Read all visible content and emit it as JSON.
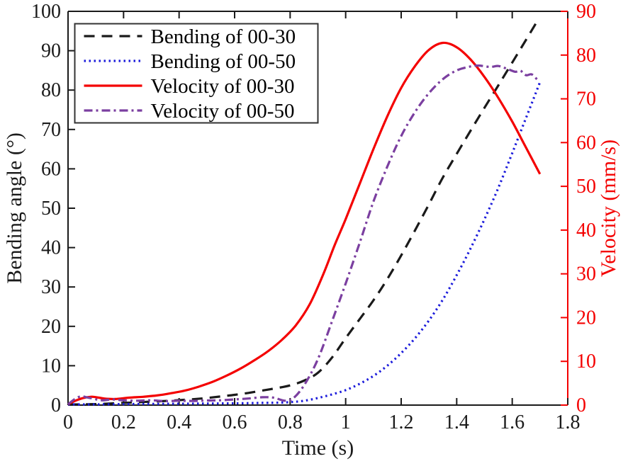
{
  "chart_data": {
    "type": "line",
    "title": "",
    "xlabel": "Time (s)",
    "ylabel_left": "Bending angle (°)",
    "ylabel_right": "Velocity (mm/s)",
    "xlim": [
      0,
      1.8
    ],
    "ylim_left": [
      0,
      100
    ],
    "ylim_right": [
      0,
      90
    ],
    "xtick_values": [
      0,
      0.2,
      0.4,
      0.6,
      0.8,
      1,
      1.2,
      1.4,
      1.6,
      1.8
    ],
    "xtick_labels": [
      "0",
      "0.2",
      "0.4",
      "0.6",
      "0.8",
      "1",
      "1.2",
      "1.4",
      "1.6",
      "1.8"
    ],
    "ytick_left_values": [
      0,
      10,
      20,
      30,
      40,
      50,
      60,
      70,
      80,
      90,
      100
    ],
    "ytick_left_labels": [
      "0",
      "10",
      "20",
      "30",
      "40",
      "50",
      "60",
      "70",
      "80",
      "90",
      "100"
    ],
    "ytick_right_values": [
      0,
      10,
      20,
      30,
      40,
      50,
      60,
      70,
      80,
      90
    ],
    "ytick_right_labels": [
      "0",
      "10",
      "20",
      "30",
      "40",
      "50",
      "60",
      "70",
      "80",
      "90"
    ],
    "grid": false,
    "legend_position": "top-left",
    "colors": {
      "axis_left": "#1a1a1a",
      "axis_right": "#f40000",
      "bending_00_30": "#1a1a1a",
      "bending_00_50": "#1c1cdb",
      "velocity_00_30": "#f40000",
      "velocity_00_50": "#7b3fa0",
      "legend_border": "#333333"
    },
    "series": [
      {
        "name": "Bending of 00-30",
        "axis": "left",
        "color": "#1a1a1a",
        "style": "dashed",
        "points": [
          [
            0,
            0
          ],
          [
            0.05,
            0.1
          ],
          [
            0.1,
            0.25
          ],
          [
            0.15,
            0.4
          ],
          [
            0.2,
            0.55
          ],
          [
            0.25,
            0.7
          ],
          [
            0.3,
            0.9
          ],
          [
            0.35,
            1.05
          ],
          [
            0.4,
            1.25
          ],
          [
            0.45,
            1.5
          ],
          [
            0.5,
            1.8
          ],
          [
            0.55,
            2.2
          ],
          [
            0.6,
            2.6
          ],
          [
            0.65,
            3.1
          ],
          [
            0.7,
            3.7
          ],
          [
            0.75,
            4.3
          ],
          [
            0.8,
            5.0
          ],
          [
            0.85,
            6.2
          ],
          [
            0.9,
            8.2
          ],
          [
            0.95,
            12.0
          ],
          [
            1.0,
            17.0
          ],
          [
            1.05,
            21.8
          ],
          [
            1.1,
            26.6
          ],
          [
            1.15,
            32.0
          ],
          [
            1.2,
            38.0
          ],
          [
            1.25,
            44.4
          ],
          [
            1.3,
            51.0
          ],
          [
            1.35,
            57.8
          ],
          [
            1.4,
            63.8
          ],
          [
            1.45,
            69.7
          ],
          [
            1.5,
            75.5
          ],
          [
            1.55,
            81.2
          ],
          [
            1.6,
            87.0
          ],
          [
            1.65,
            92.8
          ],
          [
            1.69,
            97.5
          ]
        ]
      },
      {
        "name": "Bending of 00-50",
        "axis": "left",
        "color": "#1c1cdb",
        "style": "dotted",
        "points": [
          [
            0,
            0
          ],
          [
            0.05,
            0.1
          ],
          [
            0.1,
            0.15
          ],
          [
            0.2,
            0.25
          ],
          [
            0.3,
            0.3
          ],
          [
            0.4,
            0.35
          ],
          [
            0.5,
            0.4
          ],
          [
            0.6,
            0.45
          ],
          [
            0.7,
            0.55
          ],
          [
            0.75,
            0.6
          ],
          [
            0.8,
            0.75
          ],
          [
            0.85,
            1.1
          ],
          [
            0.9,
            1.8
          ],
          [
            0.95,
            2.7
          ],
          [
            1.0,
            3.8
          ],
          [
            1.05,
            5.4
          ],
          [
            1.1,
            7.4
          ],
          [
            1.15,
            10.0
          ],
          [
            1.2,
            13.2
          ],
          [
            1.25,
            17.0
          ],
          [
            1.3,
            21.5
          ],
          [
            1.35,
            26.8
          ],
          [
            1.4,
            33.0
          ],
          [
            1.45,
            39.8
          ],
          [
            1.5,
            47.2
          ],
          [
            1.55,
            55.2
          ],
          [
            1.6,
            64.0
          ],
          [
            1.65,
            73.0
          ],
          [
            1.7,
            82.0
          ]
        ]
      },
      {
        "name": "Velocity of 00-30",
        "axis": "right",
        "color": "#f40000",
        "style": "solid",
        "points": [
          [
            0,
            0.2
          ],
          [
            0.03,
            1.1
          ],
          [
            0.06,
            1.7
          ],
          [
            0.09,
            1.9
          ],
          [
            0.13,
            1.5
          ],
          [
            0.17,
            1.4
          ],
          [
            0.22,
            1.7
          ],
          [
            0.27,
            1.9
          ],
          [
            0.32,
            2.2
          ],
          [
            0.37,
            2.7
          ],
          [
            0.42,
            3.3
          ],
          [
            0.47,
            4.2
          ],
          [
            0.52,
            5.3
          ],
          [
            0.57,
            6.7
          ],
          [
            0.62,
            8.3
          ],
          [
            0.67,
            10.2
          ],
          [
            0.72,
            12.3
          ],
          [
            0.77,
            14.9
          ],
          [
            0.82,
            18.2
          ],
          [
            0.87,
            23.0
          ],
          [
            0.92,
            30.0
          ],
          [
            0.96,
            36.5
          ],
          [
            1.0,
            42.5
          ],
          [
            1.05,
            50.5
          ],
          [
            1.1,
            58.5
          ],
          [
            1.15,
            66.0
          ],
          [
            1.2,
            72.5
          ],
          [
            1.25,
            77.5
          ],
          [
            1.3,
            81.2
          ],
          [
            1.35,
            82.8
          ],
          [
            1.4,
            81.8
          ],
          [
            1.45,
            79.0
          ],
          [
            1.5,
            75.0
          ],
          [
            1.55,
            70.2
          ],
          [
            1.6,
            64.8
          ],
          [
            1.65,
            58.8
          ],
          [
            1.7,
            52.8
          ]
        ]
      },
      {
        "name": "Velocity of 00-50",
        "axis": "right",
        "color": "#7b3fa0",
        "style": "dashdot",
        "points": [
          [
            0,
            0.2
          ],
          [
            0.04,
            1.9
          ],
          [
            0.08,
            1.6
          ],
          [
            0.12,
            1.1
          ],
          [
            0.16,
            1.3
          ],
          [
            0.2,
            1.1
          ],
          [
            0.25,
            1.0
          ],
          [
            0.3,
            1.1
          ],
          [
            0.35,
            0.9
          ],
          [
            0.4,
            1.0
          ],
          [
            0.45,
            0.95
          ],
          [
            0.5,
            1.05
          ],
          [
            0.55,
            1.1
          ],
          [
            0.6,
            1.3
          ],
          [
            0.65,
            1.5
          ],
          [
            0.7,
            1.8
          ],
          [
            0.74,
            1.7
          ],
          [
            0.78,
            1.0
          ],
          [
            0.81,
            1.5
          ],
          [
            0.85,
            4.5
          ],
          [
            0.9,
            10.5
          ],
          [
            0.95,
            19.0
          ],
          [
            1.0,
            27.8
          ],
          [
            1.05,
            37.0
          ],
          [
            1.1,
            46.5
          ],
          [
            1.15,
            54.5
          ],
          [
            1.2,
            61.5
          ],
          [
            1.25,
            67.0
          ],
          [
            1.3,
            71.3
          ],
          [
            1.35,
            74.5
          ],
          [
            1.4,
            76.5
          ],
          [
            1.45,
            77.4
          ],
          [
            1.48,
            77.6
          ],
          [
            1.52,
            77.3
          ],
          [
            1.55,
            77.5
          ],
          [
            1.58,
            76.9
          ],
          [
            1.61,
            76.2
          ],
          [
            1.63,
            76.4
          ],
          [
            1.65,
            75.4
          ],
          [
            1.67,
            75.6
          ],
          [
            1.69,
            74.4
          ]
        ]
      }
    ],
    "legend": {
      "entries": [
        "Bending of 00-30",
        "Bending of 00-50",
        "Velocity of 00-30",
        "Velocity of 00-50"
      ]
    }
  }
}
